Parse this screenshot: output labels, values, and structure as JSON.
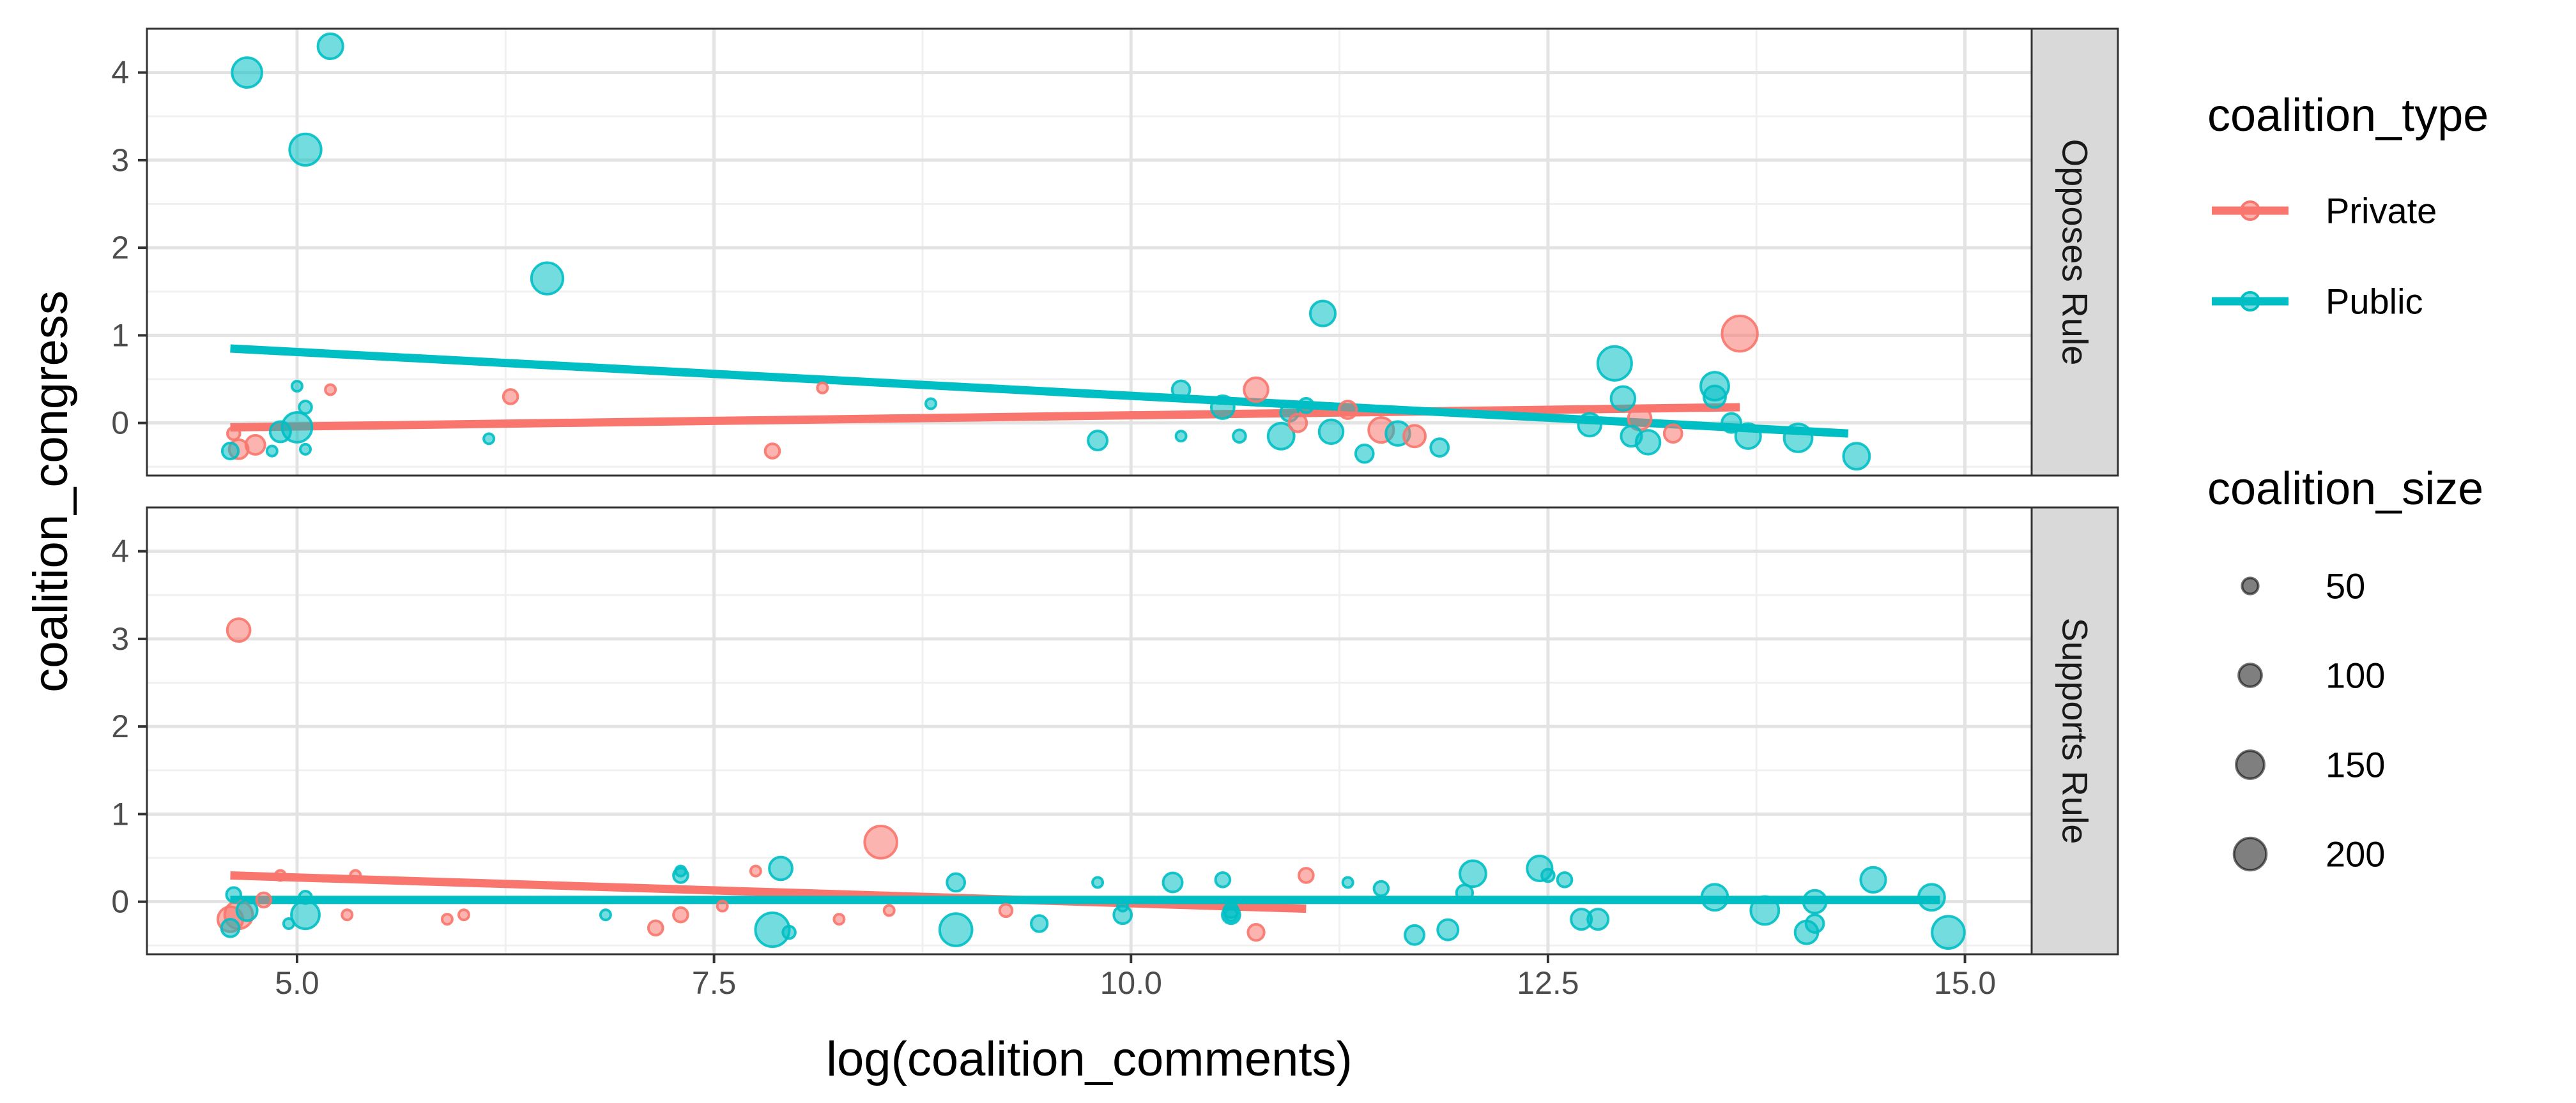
{
  "chart_data": {
    "type": "scatter",
    "xlabel": "log(coalition_comments)",
    "ylabel": "coalition_congress",
    "xlim": [
      4.1,
      15.4
    ],
    "ylim": [
      -0.6,
      4.5
    ],
    "x_ticks": [
      "5.0",
      "7.5",
      "10.0",
      "12.5",
      "15.0"
    ],
    "y_ticks": [
      "0",
      "1",
      "2",
      "3",
      "4"
    ],
    "grid": true,
    "facets": [
      "Opposes Rule",
      "Supports Rule"
    ],
    "legend": {
      "position": "right",
      "color_title": "coalition_type",
      "color_entries": [
        {
          "name": "Private",
          "color": "#F8766D"
        },
        {
          "name": "Public",
          "color": "#00BFC4"
        }
      ],
      "size_title": "coalition_size",
      "size_entries": [
        "50",
        "100",
        "150",
        "200"
      ]
    },
    "trend_lines": [
      {
        "facet": "Opposes Rule",
        "group": "Private",
        "x": [
          4.6,
          13.65
        ],
        "y": [
          -0.05,
          0.18
        ]
      },
      {
        "facet": "Opposes Rule",
        "group": "Public",
        "x": [
          4.6,
          14.3
        ],
        "y": [
          0.85,
          -0.12
        ]
      },
      {
        "facet": "Supports Rule",
        "group": "Private",
        "x": [
          4.6,
          11.05
        ],
        "y": [
          0.3,
          -0.08
        ]
      },
      {
        "facet": "Supports Rule",
        "group": "Public",
        "x": [
          4.6,
          14.85
        ],
        "y": [
          0.02,
          0.02
        ]
      }
    ],
    "points": [
      {
        "facet": "Opposes Rule",
        "group": "Public",
        "x": 4.7,
        "y": 4.0,
        "size": 170
      },
      {
        "facet": "Opposes Rule",
        "group": "Public",
        "x": 5.2,
        "y": 4.3,
        "size": 120
      },
      {
        "facet": "Opposes Rule",
        "group": "Public",
        "x": 5.05,
        "y": 3.12,
        "size": 190
      },
      {
        "facet": "Opposes Rule",
        "group": "Public",
        "x": 6.5,
        "y": 1.65,
        "size": 190
      },
      {
        "facet": "Opposes Rule",
        "group": "Public",
        "x": 11.15,
        "y": 1.25,
        "size": 120
      },
      {
        "facet": "Opposes Rule",
        "group": "Private",
        "x": 13.65,
        "y": 1.02,
        "size": 240
      },
      {
        "facet": "Opposes Rule",
        "group": "Public",
        "x": 12.9,
        "y": 0.68,
        "size": 220
      },
      {
        "facet": "Opposes Rule",
        "group": "Public",
        "x": 13.5,
        "y": 0.42,
        "size": 150
      },
      {
        "facet": "Opposes Rule",
        "group": "Public",
        "x": 12.95,
        "y": 0.28,
        "size": 110
      },
      {
        "facet": "Opposes Rule",
        "group": "Public",
        "x": 13.5,
        "y": 0.3,
        "size": 90
      },
      {
        "facet": "Opposes Rule",
        "group": "Public",
        "x": 12.75,
        "y": -0.02,
        "size": 100
      },
      {
        "facet": "Opposes Rule",
        "group": "Public",
        "x": 13.0,
        "y": -0.15,
        "size": 80
      },
      {
        "facet": "Opposes Rule",
        "group": "Public",
        "x": 13.1,
        "y": -0.22,
        "size": 110
      },
      {
        "facet": "Opposes Rule",
        "group": "Private",
        "x": 13.05,
        "y": 0.05,
        "size": 100
      },
      {
        "facet": "Opposes Rule",
        "group": "Private",
        "x": 13.25,
        "y": -0.12,
        "size": 60
      },
      {
        "facet": "Opposes Rule",
        "group": "Public",
        "x": 13.7,
        "y": -0.15,
        "size": 120
      },
      {
        "facet": "Opposes Rule",
        "group": "Public",
        "x": 13.6,
        "y": 0.0,
        "size": 70
      },
      {
        "facet": "Opposes Rule",
        "group": "Public",
        "x": 14.0,
        "y": -0.17,
        "size": 150
      },
      {
        "facet": "Opposes Rule",
        "group": "Public",
        "x": 14.35,
        "y": -0.38,
        "size": 130
      },
      {
        "facet": "Opposes Rule",
        "group": "Private",
        "x": 10.75,
        "y": 0.38,
        "size": 110
      },
      {
        "facet": "Opposes Rule",
        "group": "Public",
        "x": 10.55,
        "y": 0.18,
        "size": 100
      },
      {
        "facet": "Opposes Rule",
        "group": "Public",
        "x": 10.3,
        "y": 0.38,
        "size": 60
      },
      {
        "facet": "Opposes Rule",
        "group": "Public",
        "x": 9.8,
        "y": -0.2,
        "size": 70
      },
      {
        "facet": "Opposes Rule",
        "group": "Public",
        "x": 10.65,
        "y": -0.15,
        "size": 30
      },
      {
        "facet": "Opposes Rule",
        "group": "Public",
        "x": 10.95,
        "y": 0.12,
        "size": 60
      },
      {
        "facet": "Opposes Rule",
        "group": "Private",
        "x": 11.0,
        "y": 0.0,
        "size": 60
      },
      {
        "facet": "Opposes Rule",
        "group": "Public",
        "x": 10.9,
        "y": -0.15,
        "size": 130
      },
      {
        "facet": "Opposes Rule",
        "group": "Private",
        "x": 11.3,
        "y": 0.15,
        "size": 60
      },
      {
        "facet": "Opposes Rule",
        "group": "Public",
        "x": 11.2,
        "y": -0.1,
        "size": 110
      },
      {
        "facet": "Opposes Rule",
        "group": "Private",
        "x": 11.5,
        "y": -0.08,
        "size": 120
      },
      {
        "facet": "Opposes Rule",
        "group": "Public",
        "x": 11.6,
        "y": -0.12,
        "size": 110
      },
      {
        "facet": "Opposes Rule",
        "group": "Private",
        "x": 11.7,
        "y": -0.15,
        "size": 90
      },
      {
        "facet": "Opposes Rule",
        "group": "Public",
        "x": 11.4,
        "y": -0.35,
        "size": 60
      },
      {
        "facet": "Opposes Rule",
        "group": "Public",
        "x": 11.85,
        "y": -0.28,
        "size": 60
      },
      {
        "facet": "Opposes Rule",
        "group": "Public",
        "x": 11.05,
        "y": 0.2,
        "size": 40
      },
      {
        "facet": "Opposes Rule",
        "group": "Private",
        "x": 6.28,
        "y": 0.3,
        "size": 40
      },
      {
        "facet": "Opposes Rule",
        "group": "Private",
        "x": 5.2,
        "y": 0.38,
        "size": 20
      },
      {
        "facet": "Opposes Rule",
        "group": "Private",
        "x": 8.15,
        "y": 0.4,
        "size": 20
      },
      {
        "facet": "Opposes Rule",
        "group": "Public",
        "x": 8.8,
        "y": 0.22,
        "size": 20
      },
      {
        "facet": "Opposes Rule",
        "group": "Public",
        "x": 6.15,
        "y": -0.18,
        "size": 20
      },
      {
        "facet": "Opposes Rule",
        "group": "Private",
        "x": 7.85,
        "y": -0.32,
        "size": 40
      },
      {
        "facet": "Opposes Rule",
        "group": "Public",
        "x": 10.3,
        "y": -0.15,
        "size": 20
      },
      {
        "facet": "Opposes Rule",
        "group": "Public",
        "x": 5.0,
        "y": -0.05,
        "size": 170
      },
      {
        "facet": "Opposes Rule",
        "group": "Public",
        "x": 4.9,
        "y": -0.1,
        "size": 80
      },
      {
        "facet": "Opposes Rule",
        "group": "Public",
        "x": 5.0,
        "y": 0.42,
        "size": 20
      },
      {
        "facet": "Opposes Rule",
        "group": "Public",
        "x": 5.05,
        "y": 0.18,
        "size": 30
      },
      {
        "facet": "Opposes Rule",
        "group": "Public",
        "x": 5.05,
        "y": -0.3,
        "size": 20
      },
      {
        "facet": "Opposes Rule",
        "group": "Public",
        "x": 4.85,
        "y": -0.32,
        "size": 20
      },
      {
        "facet": "Opposes Rule",
        "group": "Private",
        "x": 4.62,
        "y": -0.12,
        "size": 30
      },
      {
        "facet": "Opposes Rule",
        "group": "Private",
        "x": 4.75,
        "y": -0.25,
        "size": 70
      },
      {
        "facet": "Opposes Rule",
        "group": "Private",
        "x": 4.65,
        "y": -0.3,
        "size": 70
      },
      {
        "facet": "Opposes Rule",
        "group": "Public",
        "x": 4.6,
        "y": -0.32,
        "size": 50
      },
      {
        "facet": "Supports Rule",
        "group": "Private",
        "x": 4.65,
        "y": 3.1,
        "size": 100
      },
      {
        "facet": "Supports Rule",
        "group": "Private",
        "x": 8.5,
        "y": 0.68,
        "size": 200
      },
      {
        "facet": "Supports Rule",
        "group": "Public",
        "x": 7.9,
        "y": 0.38,
        "size": 100
      },
      {
        "facet": "Supports Rule",
        "group": "Private",
        "x": 7.75,
        "y": 0.35,
        "size": 20
      },
      {
        "facet": "Supports Rule",
        "group": "Public",
        "x": 7.3,
        "y": 0.3,
        "size": 40
      },
      {
        "facet": "Supports Rule",
        "group": "Public",
        "x": 7.3,
        "y": 0.35,
        "size": 20
      },
      {
        "facet": "Supports Rule",
        "group": "Private",
        "x": 5.35,
        "y": 0.3,
        "size": 20
      },
      {
        "facet": "Supports Rule",
        "group": "Private",
        "x": 4.9,
        "y": 0.3,
        "size": 20
      },
      {
        "facet": "Supports Rule",
        "group": "Public",
        "x": 8.95,
        "y": 0.22,
        "size": 60
      },
      {
        "facet": "Supports Rule",
        "group": "Public",
        "x": 9.8,
        "y": 0.22,
        "size": 20
      },
      {
        "facet": "Supports Rule",
        "group": "Public",
        "x": 10.25,
        "y": 0.22,
        "size": 70
      },
      {
        "facet": "Supports Rule",
        "group": "Public",
        "x": 10.55,
        "y": 0.25,
        "size": 40
      },
      {
        "facet": "Supports Rule",
        "group": "Private",
        "x": 11.05,
        "y": 0.3,
        "size": 40
      },
      {
        "facet": "Supports Rule",
        "group": "Public",
        "x": 11.3,
        "y": 0.22,
        "size": 20
      },
      {
        "facet": "Supports Rule",
        "group": "Public",
        "x": 11.5,
        "y": 0.15,
        "size": 40
      },
      {
        "facet": "Supports Rule",
        "group": "Public",
        "x": 12.05,
        "y": 0.32,
        "size": 130
      },
      {
        "facet": "Supports Rule",
        "group": "Public",
        "x": 12.45,
        "y": 0.38,
        "size": 120
      },
      {
        "facet": "Supports Rule",
        "group": "Public",
        "x": 12.5,
        "y": 0.3,
        "size": 30
      },
      {
        "facet": "Supports Rule",
        "group": "Public",
        "x": 12.6,
        "y": 0.25,
        "size": 40
      },
      {
        "facet": "Supports Rule",
        "group": "Public",
        "x": 12.0,
        "y": 0.1,
        "size": 50
      },
      {
        "facet": "Supports Rule",
        "group": "Public",
        "x": 13.5,
        "y": 0.05,
        "size": 130
      },
      {
        "facet": "Supports Rule",
        "group": "Public",
        "x": 13.8,
        "y": -0.1,
        "size": 150
      },
      {
        "facet": "Supports Rule",
        "group": "Public",
        "x": 14.1,
        "y": 0.0,
        "size": 100
      },
      {
        "facet": "Supports Rule",
        "group": "Public",
        "x": 14.45,
        "y": 0.25,
        "size": 120
      },
      {
        "facet": "Supports Rule",
        "group": "Public",
        "x": 14.8,
        "y": 0.05,
        "size": 130
      },
      {
        "facet": "Supports Rule",
        "group": "Public",
        "x": 14.9,
        "y": -0.35,
        "size": 200
      },
      {
        "facet": "Supports Rule",
        "group": "Public",
        "x": 14.1,
        "y": -0.25,
        "size": 60
      },
      {
        "facet": "Supports Rule",
        "group": "Public",
        "x": 14.05,
        "y": -0.35,
        "size": 100
      },
      {
        "facet": "Supports Rule",
        "group": "Public",
        "x": 12.8,
        "y": -0.2,
        "size": 80
      },
      {
        "facet": "Supports Rule",
        "group": "Public",
        "x": 12.7,
        "y": -0.2,
        "size": 80
      },
      {
        "facet": "Supports Rule",
        "group": "Public",
        "x": 11.9,
        "y": -0.32,
        "size": 80
      },
      {
        "facet": "Supports Rule",
        "group": "Public",
        "x": 11.7,
        "y": -0.38,
        "size": 70
      },
      {
        "facet": "Supports Rule",
        "group": "Public",
        "x": 10.6,
        "y": -0.1,
        "size": 40
      },
      {
        "facet": "Supports Rule",
        "group": "Private",
        "x": 10.75,
        "y": -0.35,
        "size": 50
      },
      {
        "facet": "Supports Rule",
        "group": "Public",
        "x": 10.6,
        "y": -0.15,
        "size": 30
      },
      {
        "facet": "Supports Rule",
        "group": "Public",
        "x": 10.6,
        "y": -0.15,
        "size": 60
      },
      {
        "facet": "Supports Rule",
        "group": "Public",
        "x": 9.95,
        "y": -0.05,
        "size": 20
      },
      {
        "facet": "Supports Rule",
        "group": "Public",
        "x": 9.95,
        "y": -0.15,
        "size": 60
      },
      {
        "facet": "Supports Rule",
        "group": "Public",
        "x": 9.45,
        "y": -0.25,
        "size": 50
      },
      {
        "facet": "Supports Rule",
        "group": "Private",
        "x": 9.25,
        "y": -0.1,
        "size": 30
      },
      {
        "facet": "Supports Rule",
        "group": "Public",
        "x": 8.95,
        "y": -0.32,
        "size": 200
      },
      {
        "facet": "Supports Rule",
        "group": "Public",
        "x": 7.85,
        "y": -0.32,
        "size": 220
      },
      {
        "facet": "Supports Rule",
        "group": "Public",
        "x": 7.95,
        "y": -0.35,
        "size": 30
      },
      {
        "facet": "Supports Rule",
        "group": "Private",
        "x": 8.25,
        "y": -0.2,
        "size": 20
      },
      {
        "facet": "Supports Rule",
        "group": "Private",
        "x": 8.55,
        "y": -0.1,
        "size": 20
      },
      {
        "facet": "Supports Rule",
        "group": "Private",
        "x": 7.55,
        "y": -0.05,
        "size": 20
      },
      {
        "facet": "Supports Rule",
        "group": "Private",
        "x": 7.3,
        "y": -0.15,
        "size": 40
      },
      {
        "facet": "Supports Rule",
        "group": "Private",
        "x": 7.15,
        "y": -0.3,
        "size": 40
      },
      {
        "facet": "Supports Rule",
        "group": "Public",
        "x": 6.85,
        "y": -0.15,
        "size": 20
      },
      {
        "facet": "Supports Rule",
        "group": "Private",
        "x": 6.0,
        "y": -0.15,
        "size": 20
      },
      {
        "facet": "Supports Rule",
        "group": "Private",
        "x": 5.9,
        "y": -0.2,
        "size": 20
      },
      {
        "facet": "Supports Rule",
        "group": "Private",
        "x": 5.3,
        "y": -0.15,
        "size": 20
      },
      {
        "facet": "Supports Rule",
        "group": "Public",
        "x": 5.05,
        "y": -0.15,
        "size": 150
      },
      {
        "facet": "Supports Rule",
        "group": "Public",
        "x": 5.05,
        "y": 0.05,
        "size": 30
      },
      {
        "facet": "Supports Rule",
        "group": "Private",
        "x": 4.65,
        "y": -0.15,
        "size": 150
      },
      {
        "facet": "Supports Rule",
        "group": "Private",
        "x": 4.6,
        "y": -0.2,
        "size": 120
      },
      {
        "facet": "Supports Rule",
        "group": "Public",
        "x": 4.6,
        "y": -0.3,
        "size": 60
      },
      {
        "facet": "Supports Rule",
        "group": "Public",
        "x": 4.62,
        "y": 0.08,
        "size": 40
      },
      {
        "facet": "Supports Rule",
        "group": "Private",
        "x": 4.8,
        "y": 0.02,
        "size": 40
      },
      {
        "facet": "Supports Rule",
        "group": "Public",
        "x": 4.7,
        "y": -0.1,
        "size": 80
      },
      {
        "facet": "Supports Rule",
        "group": "Public",
        "x": 4.95,
        "y": -0.25,
        "size": 20
      }
    ]
  }
}
